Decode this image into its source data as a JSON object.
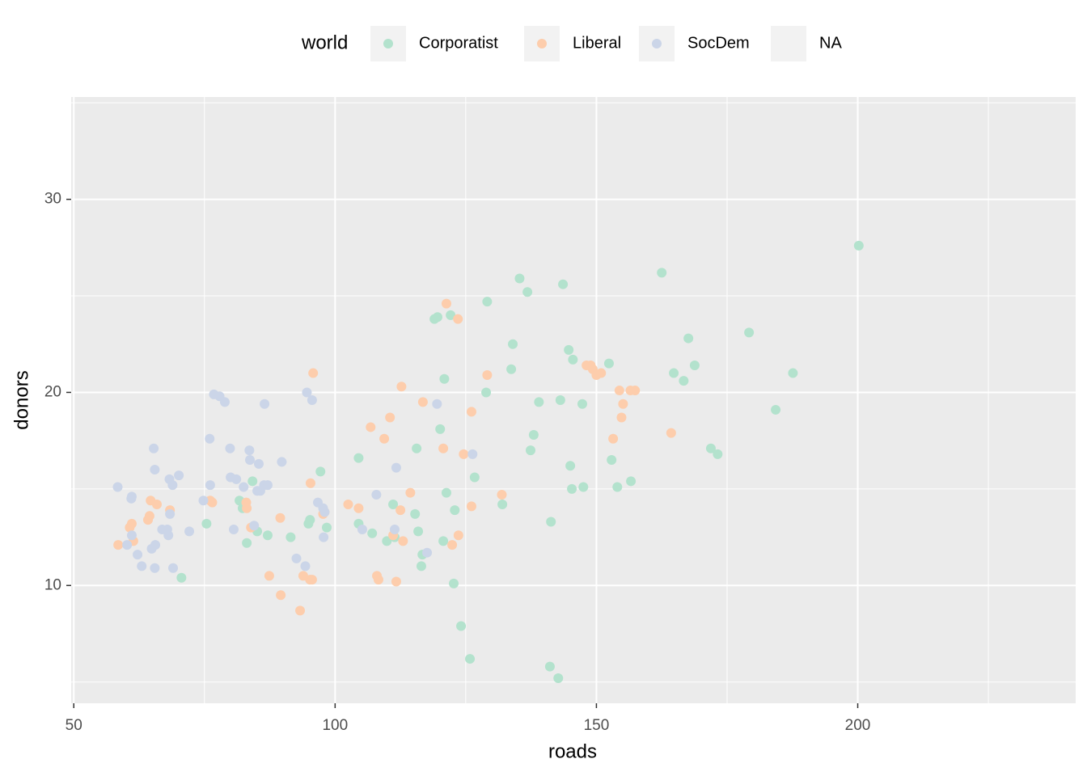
{
  "chart_data": {
    "type": "scatter",
    "x_label": "roads",
    "y_label": "donors",
    "legend_title": "world",
    "legend_position": "top",
    "xlim": [
      49.5,
      241.7
    ],
    "ylim": [
      3.9,
      35.3
    ],
    "xticks": [
      50,
      100,
      150,
      200
    ],
    "yticks": [
      10,
      20,
      30
    ],
    "x_minor_grid": [
      75,
      125,
      175,
      225
    ],
    "y_minor_grid": [
      5,
      15,
      25,
      35
    ],
    "grid": true,
    "series": [
      {
        "name": "Corporatist",
        "color": "#b3e2cd",
        "x": [
          70.6,
          75.4,
          81.7,
          82.3,
          83.1,
          84.2,
          85.1,
          87.1,
          91.5,
          94.9,
          95.2,
          97.2,
          98.4,
          104.5,
          104.5,
          107.1,
          109.9,
          111.1,
          111.4,
          115.3,
          115.6,
          115.9,
          116.5,
          116.7,
          119.0,
          119.6,
          120.1,
          120.9,
          121.3,
          120.7,
          122.1,
          122.7,
          122.9,
          124.1,
          125.8,
          126.7,
          129.1,
          128.9,
          132.0,
          133.7,
          134.0,
          135.3,
          136.8,
          137.4,
          138.0,
          139.0,
          141.3,
          141.1,
          142.7,
          143.1,
          143.6,
          144.7,
          145.0,
          145.5,
          145.3,
          147.3,
          147.5,
          152.4,
          152.9,
          154.0,
          156.6,
          162.5,
          164.8,
          166.7,
          167.6,
          168.8,
          171.9,
          173.2,
          179.2,
          184.3,
          187.6,
          200.2
        ],
        "values": [
          10.4,
          13.2,
          14.4,
          14.0,
          12.2,
          15.4,
          12.8,
          12.6,
          12.5,
          13.2,
          13.4,
          15.9,
          13.0,
          16.6,
          13.2,
          12.7,
          12.3,
          14.2,
          12.5,
          13.7,
          17.1,
          12.8,
          11.0,
          11.6,
          23.8,
          23.9,
          18.1,
          20.7,
          14.8,
          12.3,
          24.0,
          10.1,
          13.9,
          7.9,
          6.2,
          15.6,
          24.7,
          20.0,
          14.2,
          21.2,
          22.5,
          25.9,
          25.2,
          17.0,
          17.8,
          19.5,
          13.3,
          5.8,
          5.2,
          19.6,
          25.6,
          22.2,
          16.2,
          21.7,
          15.0,
          19.4,
          15.1,
          21.5,
          16.5,
          15.1,
          15.4,
          26.2,
          21.0,
          20.6,
          22.8,
          21.4,
          17.1,
          16.8,
          23.1,
          19.1,
          21.0,
          27.6
        ]
      },
      {
        "name": "Liberal",
        "color": "#fdcdac",
        "x": [
          58.5,
          60.7,
          61.1,
          61.4,
          64.2,
          64.5,
          64.7,
          65.9,
          68.4,
          76.1,
          76.5,
          83.0,
          83.1,
          83.9,
          87.4,
          89.5,
          89.6,
          93.3,
          93.9,
          95.2,
          95.6,
          95.3,
          95.8,
          97.7,
          98.0,
          102.5,
          104.5,
          106.8,
          108.0,
          108.3,
          109.4,
          110.5,
          111.1,
          111.7,
          112.5,
          112.7,
          113.0,
          114.4,
          116.8,
          120.7,
          121.3,
          122.4,
          123.5,
          123.6,
          124.6,
          126.1,
          126.1,
          129.1,
          131.9,
          148.1,
          148.9,
          149.3,
          150.0,
          150.9,
          153.2,
          154.4,
          154.8,
          155.1,
          156.5,
          157.4,
          164.3
        ],
        "values": [
          12.1,
          13.0,
          13.2,
          12.3,
          13.4,
          13.6,
          14.4,
          14.2,
          13.9,
          14.4,
          14.3,
          14.3,
          14.0,
          13.0,
          10.5,
          13.5,
          9.5,
          8.7,
          10.5,
          10.3,
          10.3,
          15.3,
          21.0,
          13.7,
          13.8,
          14.2,
          14.0,
          18.2,
          10.5,
          10.3,
          17.6,
          18.7,
          12.6,
          10.2,
          13.9,
          20.3,
          12.3,
          14.8,
          19.5,
          17.1,
          24.6,
          12.1,
          23.8,
          12.6,
          16.8,
          19.0,
          14.1,
          20.9,
          14.7,
          21.4,
          21.4,
          21.2,
          20.9,
          21.0,
          17.6,
          20.1,
          18.7,
          19.4,
          20.1,
          20.1,
          17.9
        ]
      },
      {
        "name": "SocDem",
        "color": "#cbd5e8",
        "x": [
          58.4,
          60.2,
          61.0,
          61.1,
          61.1,
          62.2,
          63.0,
          64.9,
          65.3,
          65.5,
          65.6,
          65.5,
          66.9,
          67.9,
          68.1,
          68.3,
          68.4,
          68.9,
          69.0,
          70.1,
          72.1,
          74.8,
          76.0,
          76.1,
          76.8,
          77.9,
          78.9,
          79.9,
          80.0,
          80.6,
          81.1,
          82.5,
          83.6,
          83.7,
          84.5,
          85.1,
          85.4,
          85.7,
          86.4,
          86.5,
          87.1,
          89.8,
          92.6,
          94.3,
          94.6,
          95.6,
          96.7,
          97.7,
          98.0,
          97.8,
          105.2,
          107.9,
          111.4,
          111.7,
          117.6,
          119.5,
          126.3
        ],
        "values": [
          15.1,
          12.1,
          14.5,
          14.6,
          12.6,
          11.6,
          11.0,
          11.9,
          17.1,
          16.0,
          12.1,
          10.9,
          12.9,
          12.9,
          12.6,
          15.5,
          13.7,
          15.2,
          10.9,
          15.7,
          12.8,
          14.4,
          17.6,
          15.2,
          19.9,
          19.8,
          19.5,
          17.1,
          15.6,
          12.9,
          15.5,
          15.1,
          17.0,
          16.5,
          13.1,
          14.9,
          16.3,
          14.9,
          15.2,
          19.4,
          15.2,
          16.4,
          11.4,
          11.0,
          20.0,
          19.6,
          14.3,
          14.0,
          13.8,
          12.5,
          12.9,
          14.7,
          12.9,
          16.1,
          11.7,
          19.4,
          16.8
        ]
      },
      {
        "name": "NA",
        "color": null,
        "x": [],
        "values": []
      }
    ]
  }
}
